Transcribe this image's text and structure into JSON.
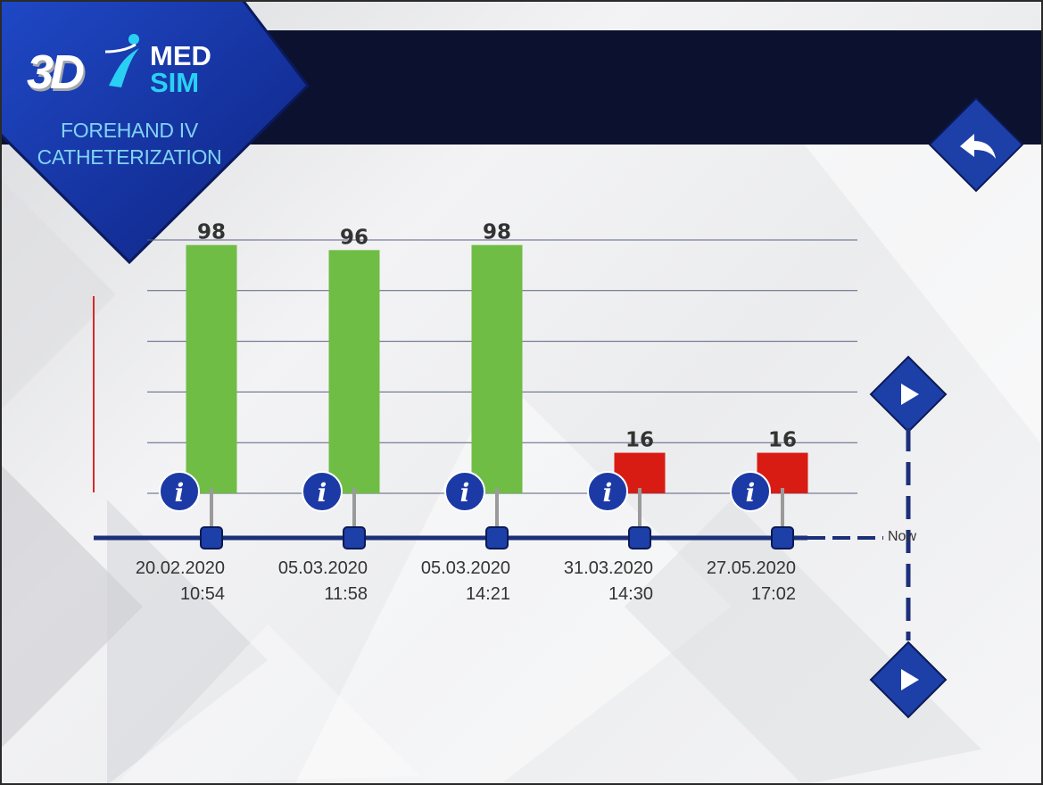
{
  "app": {
    "logo_3d": "3D",
    "logo_med": "MED",
    "logo_sim": "SIM",
    "module_title_line1": "FOREHAND IV",
    "module_title_line2": "CATHETERIZATION"
  },
  "icons": {
    "back": "back-arrow-icon",
    "next": "play-triangle-icon",
    "info": "info-icon"
  },
  "colors": {
    "header": "#0c1130",
    "accent": "#1c3aa6",
    "pass": "#6fbd45",
    "fail": "#d81c14",
    "logo_sim": "#2ad0f4"
  },
  "timeline": {
    "now_label": "Now"
  },
  "chart_data": {
    "type": "bar",
    "categories": [
      [
        "20.02.2020",
        "10:54"
      ],
      [
        "05.03.2020",
        "11:58"
      ],
      [
        "05.03.2020",
        "14:21"
      ],
      [
        "31.03.2020",
        "14:30"
      ],
      [
        "27.05.2020",
        "17:02"
      ]
    ],
    "values": [
      98,
      96,
      98,
      16,
      16
    ],
    "value_labels": [
      "98",
      "96",
      "98",
      "16",
      "16"
    ],
    "bar_colors": [
      "#6fbd45",
      "#6fbd45",
      "#6fbd45",
      "#d81c14",
      "#d81c14"
    ],
    "ylim": [
      0,
      100
    ],
    "grid": true
  }
}
